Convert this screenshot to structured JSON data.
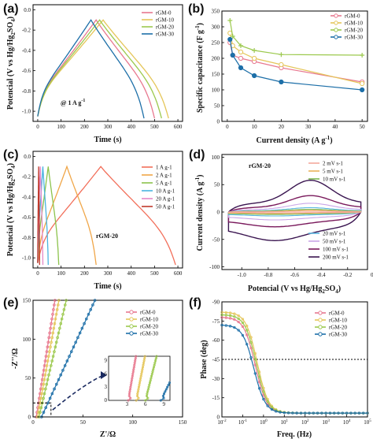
{
  "colors": {
    "rGM-0": "#e8788f",
    "rGM-10": "#e5c65a",
    "rGM-20": "#9cc94e",
    "rGM-30": "#1d6fa8",
    "1 A g-1": "#f26f5a",
    "2 A g-1": "#f0a648",
    "5 A g-1": "#8cc34c",
    "10 A g-1": "#4ab4e0",
    "20 A g-1": "#e488c8",
    "50 A g-1": "#c0392b",
    "2 mV s-1": "#f4a89c",
    "5 mV s-1": "#e9b25c",
    "10 mV s-1": "#79b651",
    "20 mV s-1": "#5bb6e0",
    "50 mV s-1": "#c9a6e8",
    "100 mV s-1": "#7a1a5c",
    "200 mV s-1": "#3a1550"
  },
  "chart_data": [
    {
      "panel": "(a)",
      "type": "line",
      "xlabel": "Time (s)",
      "ylabel": "Potencial (V vs Hg/Hg2SO4)",
      "xlim": [
        -20,
        620
      ],
      "ylim": [
        -1.1,
        0.05
      ],
      "xticks": [
        "0",
        "100",
        "200",
        "300",
        "400",
        "500",
        "600"
      ],
      "yticks": [
        "0.0",
        "-0.2",
        "-0.4",
        "-0.6",
        "-0.8",
        "-1.0"
      ],
      "annotation": "@ 1 A g-1",
      "legend_position": "top-right",
      "series": [
        {
          "name": "rGM-0",
          "peak_time": 250,
          "end_time": 500
        },
        {
          "name": "rGM-10",
          "peak_time": 280,
          "end_time": 560
        },
        {
          "name": "rGM-20",
          "peak_time": 265,
          "end_time": 530
        },
        {
          "name": "rGM-30",
          "peak_time": 228,
          "end_time": 455
        }
      ]
    },
    {
      "panel": "(b)",
      "type": "line",
      "xlabel": "Current density (A g-1)",
      "ylabel": "Specific capacitance (F g-1)",
      "xlim": [
        -2,
        52
      ],
      "ylim": [
        0,
        350
      ],
      "xticks": [
        "0",
        "10",
        "20",
        "30",
        "40",
        "50"
      ],
      "yticks": [
        "0",
        "50",
        "100",
        "150",
        "200",
        "250",
        "300",
        "350"
      ],
      "legend_position": "top-right",
      "x": [
        1,
        2,
        5,
        10,
        20,
        50
      ],
      "series": [
        {
          "name": "rGM-0",
          "values": [
            250,
            210,
            200,
            190,
            170,
            125
          ]
        },
        {
          "name": "rGM-10",
          "values": [
            280,
            240,
            220,
            200,
            180,
            120
          ]
        },
        {
          "name": "rGM-20",
          "values": [
            320,
            270,
            240,
            225,
            212,
            210
          ]
        },
        {
          "name": "rGM-30",
          "values": [
            260,
            210,
            170,
            145,
            125,
            100
          ]
        }
      ]
    },
    {
      "panel": "(c)",
      "type": "line",
      "xlabel": "Time (s)",
      "ylabel": "Potencial (V vs Hg/Hg2SO4)",
      "xlim": [
        -20,
        620
      ],
      "ylim": [
        -1.1,
        0.05
      ],
      "xticks": [
        "0",
        "100",
        "200",
        "300",
        "400",
        "500",
        "600"
      ],
      "yticks": [
        "0.0",
        "-0.2",
        "-0.4",
        "-0.6",
        "-0.8",
        "-1.0"
      ],
      "annotation": "rGM-20",
      "legend_position": "top-right",
      "series": [
        {
          "name": "1 A g-1",
          "peak_time": 270,
          "end_time": 590
        },
        {
          "name": "2 A g-1",
          "peak_time": 125,
          "end_time": 250
        },
        {
          "name": "5 A g-1",
          "peak_time": 45,
          "end_time": 90
        },
        {
          "name": "10 A g-1",
          "peak_time": 22,
          "end_time": 45
        },
        {
          "name": "20 A g-1",
          "peak_time": 11,
          "end_time": 22
        },
        {
          "name": "50 A g-1",
          "peak_time": 4,
          "end_time": 8
        }
      ]
    },
    {
      "panel": "(d)",
      "type": "line",
      "xlabel": "Potencial (V vs Hg/Hg2SO4)",
      "ylabel": "Current density (A g-1)",
      "xlim": [
        -1.15,
        -0.05
      ],
      "ylim": [
        -105,
        105
      ],
      "xticks": [
        "-1.0",
        "-0.8",
        "-0.6",
        "-0.4",
        "-0.2",
        "0.0"
      ],
      "yticks": [
        "100",
        "50",
        "0",
        "-50",
        "-100"
      ],
      "annotation": "rGM-20",
      "legend_position": "split right",
      "series": [
        {
          "name": "2 mV s-1",
          "amplitude": 1.5
        },
        {
          "name": "5 mV s-1",
          "amplitude": 3
        },
        {
          "name": "10 mV s-1",
          "amplitude": 5
        },
        {
          "name": "20 mV s-1",
          "amplitude": 8
        },
        {
          "name": "50 mV s-1",
          "amplitude": 16
        },
        {
          "name": "100 mV s-1",
          "amplitude": 30
        },
        {
          "name": "200 mV s-1",
          "amplitude": 58
        }
      ]
    },
    {
      "panel": "(e)",
      "type": "scatter",
      "xlabel": "Z'/Ω",
      "ylabel": "-Z''/Ω",
      "xlim": [
        0,
        150
      ],
      "ylim": [
        0,
        150
      ],
      "xticks": [
        "0",
        "50",
        "100",
        "150"
      ],
      "yticks": [
        "0",
        "50",
        "100",
        "150"
      ],
      "legend_position": "top-right",
      "inset": {
        "xticks": [
          "3",
          "6",
          "9"
        ],
        "yticks": [
          "0",
          "3",
          "6",
          "9"
        ]
      },
      "series": [
        {
          "name": "rGM-0",
          "slope": 8.0,
          "x0": 3.2
        },
        {
          "name": "rGM-10",
          "slope": 7.0,
          "x0": 4.5
        },
        {
          "name": "rGM-20",
          "slope": 5.5,
          "x0": 6.0
        },
        {
          "name": "rGM-30",
          "slope": 2.8,
          "x0": 8.5
        }
      ]
    },
    {
      "panel": "(f)",
      "type": "scatter",
      "xlabel": "Freq. (Hz)",
      "ylabel": "Phase (deg)",
      "xscale": "log",
      "xlim": [
        0.01,
        100000
      ],
      "ylim": [
        0,
        -90
      ],
      "xticks": [
        "10-2",
        "10-1",
        "100",
        "101",
        "102",
        "103",
        "104",
        "105"
      ],
      "yticks": [
        "-90",
        "-75",
        "-60",
        "-45",
        "-30",
        "-15",
        "0"
      ],
      "reference_line": -45,
      "legend_position": "top-right",
      "series": [
        {
          "name": "rGM-0",
          "low_phase": -78,
          "knee_hz": 0.4
        },
        {
          "name": "rGM-10",
          "low_phase": -82,
          "knee_hz": 0.5
        },
        {
          "name": "rGM-20",
          "low_phase": -80,
          "knee_hz": 0.45
        },
        {
          "name": "rGM-30",
          "low_phase": -72,
          "knee_hz": 0.35
        }
      ]
    }
  ],
  "text": {
    "a": {
      "panel": "(a)",
      "ylabel": "Potencial (V vs Hg/Hg",
      "ylabel_sub": "2",
      "ylabel_tail": "SO",
      "ylabel_sub2": "4",
      "ylabel_end": ")",
      "xlabel": "Time (s)",
      "annot": "@ 1 A g",
      "annot_sup": "-1"
    },
    "b": {
      "panel": "(b)",
      "ylabel": "Specific capacitance (F g",
      "ylabel_sup": "-1",
      "ylabel_end": ")",
      "xlabel": "Current density (A g",
      "xlabel_sup": "-1",
      "xlabel_end": ")"
    },
    "c": {
      "panel": "(c)",
      "ylabel": "Potencial (V vs Hg/Hg",
      "ylabel_sub": "2",
      "ylabel_tail": "SO",
      "ylabel_sub2": "4",
      "ylabel_end": ")",
      "xlabel": "Time (s)",
      "annot": "rGM-20"
    },
    "d": {
      "panel": "(d)",
      "ylabel": "Current density (A g",
      "ylabel_sup": "-1",
      "ylabel_end": ")",
      "xlabel": "Potencial (V vs Hg/Hg",
      "xlabel_sub": "2",
      "xlabel_tail": "SO",
      "xlabel_sub2": "4",
      "xlabel_end": ")",
      "annot": "rGM-20"
    },
    "e": {
      "panel": "(e)",
      "ylabel": "-Z''/Ω",
      "xlabel": "Z'/Ω"
    },
    "f": {
      "panel": "(f)",
      "ylabel": "Phase (deg)",
      "xlabel": "Freq. (Hz)"
    }
  }
}
